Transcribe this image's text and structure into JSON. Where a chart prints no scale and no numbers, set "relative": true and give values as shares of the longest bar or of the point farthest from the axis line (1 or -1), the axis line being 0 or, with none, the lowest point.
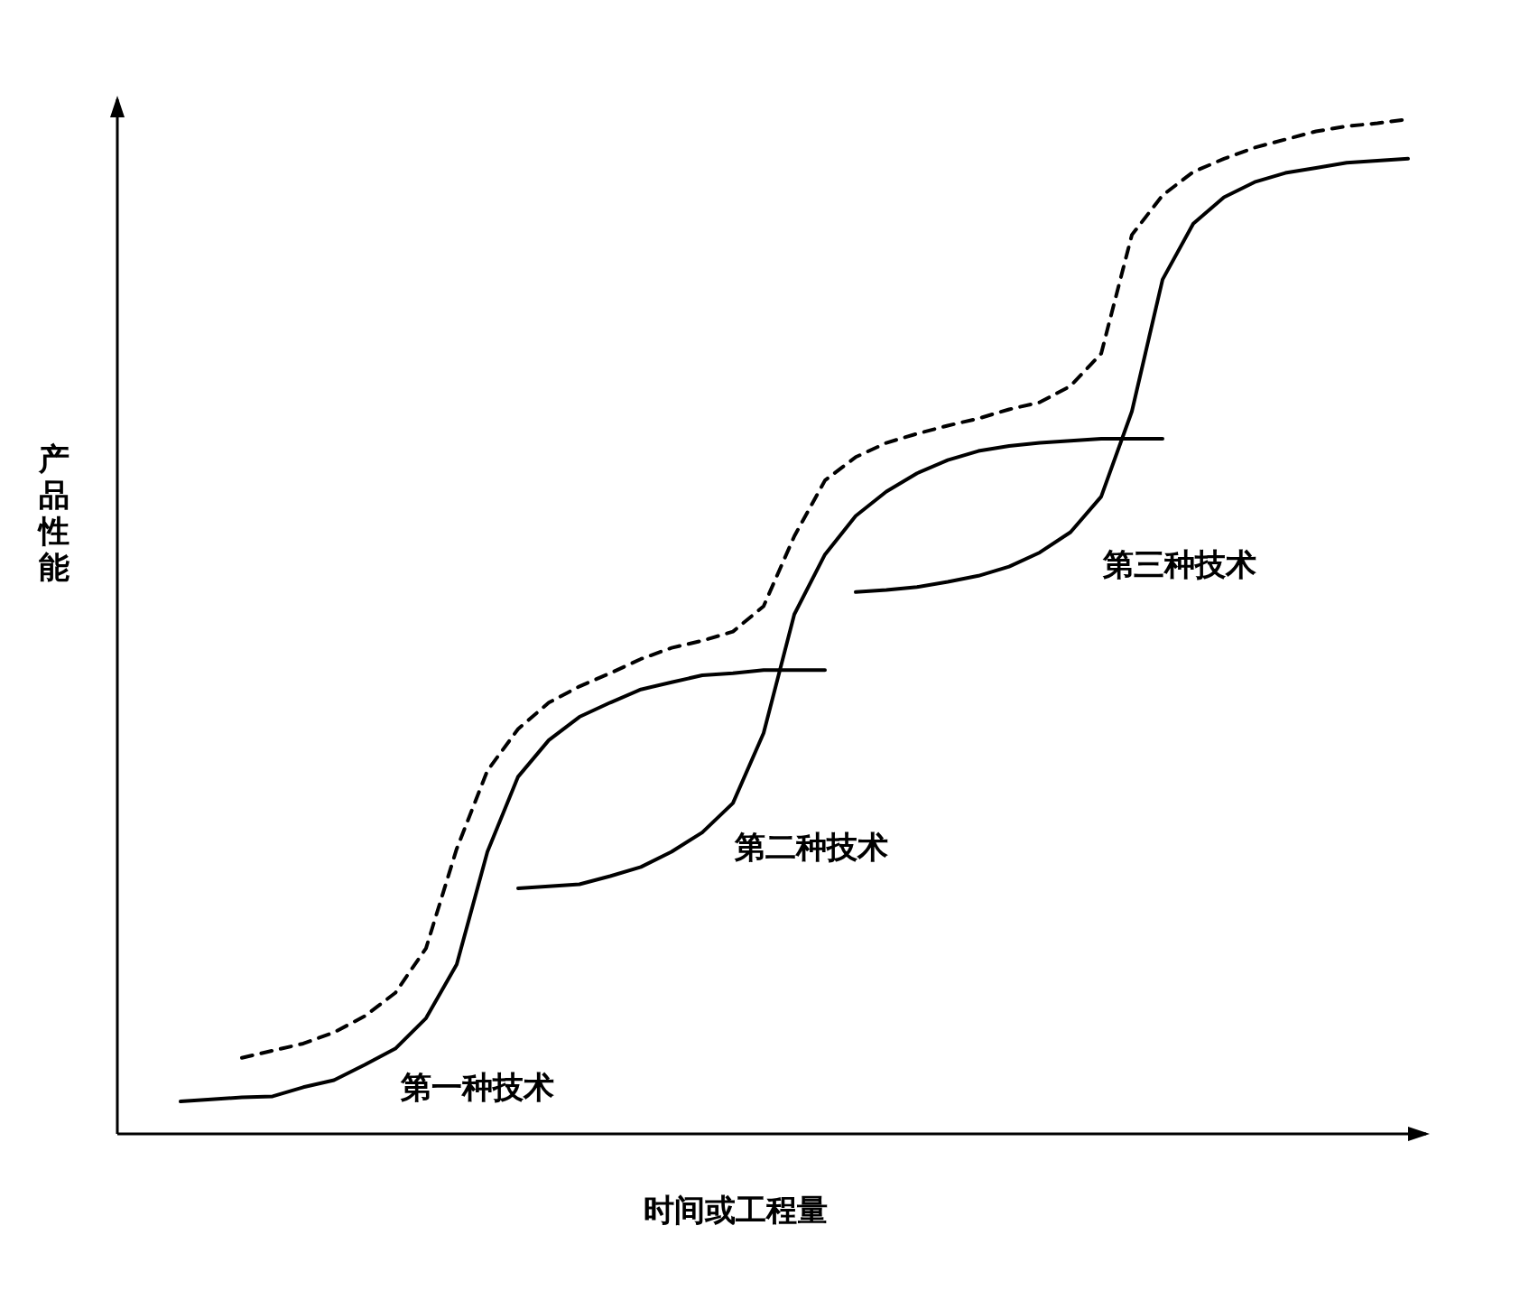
{
  "chart_data": {
    "type": "line",
    "relative": true,
    "xlabel": "时间或工程量",
    "ylabel": "产品性能",
    "categories": [
      null,
      null,
      null,
      null,
      null,
      null,
      null,
      null,
      null,
      null,
      null,
      null,
      null,
      null,
      null,
      null,
      null,
      null,
      null,
      null,
      null,
      null,
      null,
      null,
      null,
      null,
      null,
      null,
      null,
      null,
      null,
      null,
      null,
      null,
      null,
      null,
      null,
      null,
      null,
      null,
      null
    ],
    "series": [
      {
        "name": "第一种技术",
        "color": "#000000",
        "line_style": "solid",
        "values": [
          0.032,
          0.034,
          0.036,
          0.037,
          0.046,
          0.053,
          0.068,
          0.084,
          0.114,
          0.167,
          0.278,
          0.352,
          0.388,
          0.411,
          0.425,
          0.438,
          0.445,
          0.452,
          0.454,
          0.457,
          0.457,
          0.457,
          null,
          null,
          null,
          null,
          null,
          null,
          null,
          null,
          null,
          null,
          null,
          null,
          null,
          null,
          null,
          null,
          null,
          null,
          null
        ]
      },
      {
        "name": "第二种技术",
        "color": "#000000",
        "line_style": "solid",
        "values": [
          null,
          null,
          null,
          null,
          null,
          null,
          null,
          null,
          null,
          null,
          null,
          0.242,
          0.244,
          0.246,
          0.254,
          0.263,
          0.278,
          0.297,
          0.326,
          0.395,
          0.512,
          0.571,
          0.609,
          0.633,
          0.651,
          0.664,
          0.673,
          0.678,
          0.681,
          0.683,
          0.685,
          0.685,
          0.685,
          null,
          null,
          null,
          null,
          null,
          null,
          null,
          null
        ]
      },
      {
        "name": "第三种技术",
        "color": "#000000",
        "line_style": "solid",
        "values": [
          null,
          null,
          null,
          null,
          null,
          null,
          null,
          null,
          null,
          null,
          null,
          null,
          null,
          null,
          null,
          null,
          null,
          null,
          null,
          null,
          null,
          null,
          0.534,
          0.536,
          0.539,
          0.544,
          0.55,
          0.559,
          0.573,
          0.593,
          0.628,
          0.712,
          0.842,
          0.897,
          0.923,
          0.938,
          0.947,
          0.952,
          0.957,
          0.959,
          0.961
        ]
      },
      {
        "color": "#000000",
        "line_style": "dashed",
        "values": [
          null,
          null,
          0.075,
          0.082,
          0.089,
          0.1,
          0.116,
          0.139,
          0.183,
          0.281,
          0.358,
          0.399,
          0.425,
          0.441,
          0.454,
          0.468,
          0.479,
          0.486,
          0.495,
          0.52,
          0.589,
          0.644,
          0.667,
          0.681,
          0.69,
          0.698,
          0.705,
          0.714,
          0.721,
          0.737,
          0.769,
          0.886,
          0.925,
          0.948,
          0.961,
          0.972,
          0.98,
          0.988,
          0.993,
          0.996,
          1
        ]
      }
    ]
  }
}
